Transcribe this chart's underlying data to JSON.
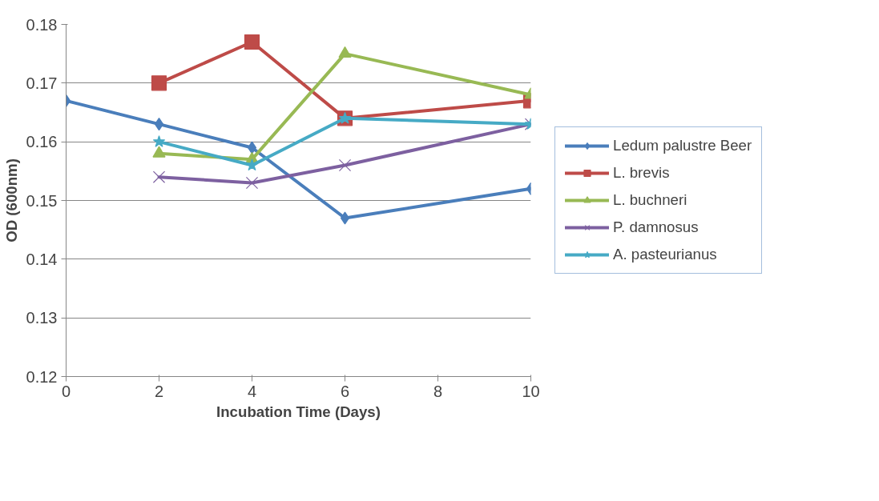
{
  "chart_data": {
    "type": "line",
    "xlabel": "Incubation Time (Days)",
    "ylabel": "OD (600nm)",
    "x": [
      0,
      2,
      4,
      6,
      10
    ],
    "xlim": [
      0,
      10
    ],
    "xticks": [
      0,
      2,
      4,
      6,
      8,
      10
    ],
    "ylim": [
      0.12,
      0.18
    ],
    "yticks": [
      0.12,
      0.13,
      0.14,
      0.15,
      0.16,
      0.17,
      0.18
    ],
    "grid": "y",
    "legend": "right",
    "series": [
      {
        "name": "Ledum palustre Beer",
        "color": "#4a7ebb",
        "marker": "diamond",
        "values": [
          0.167,
          0.163,
          0.159,
          0.147,
          0.152
        ]
      },
      {
        "name": "L. brevis",
        "color": "#be4b48",
        "marker": "square",
        "values": [
          null,
          0.17,
          0.177,
          0.164,
          0.167
        ]
      },
      {
        "name": "L. buchneri",
        "color": "#98b954",
        "marker": "triangle",
        "values": [
          null,
          0.158,
          0.157,
          0.175,
          0.168
        ]
      },
      {
        "name": "P. damnosus",
        "color": "#7d60a0",
        "marker": "cross",
        "values": [
          null,
          0.154,
          0.153,
          0.156,
          0.163
        ]
      },
      {
        "name": "A. pasteurianus",
        "color": "#46aac5",
        "marker": "star",
        "values": [
          null,
          0.16,
          0.156,
          0.164,
          0.163
        ]
      }
    ]
  }
}
